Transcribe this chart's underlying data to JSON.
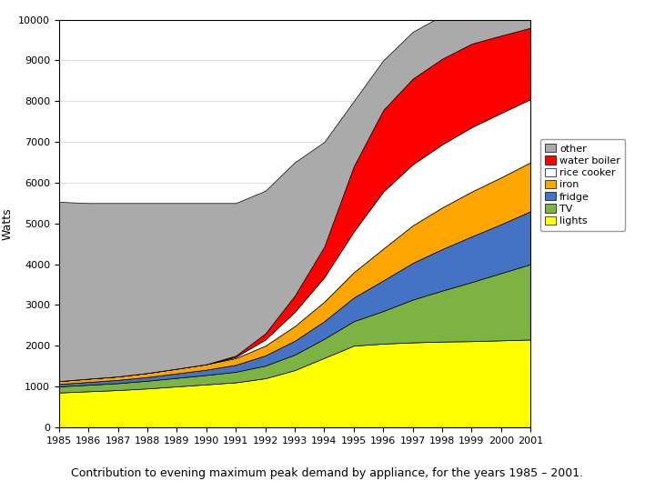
{
  "years": [
    1985,
    1986,
    1987,
    1988,
    1989,
    1990,
    1991,
    1992,
    1993,
    1994,
    1995,
    1996,
    1997,
    1998,
    1999,
    2000,
    2001
  ],
  "series": {
    "lights": [
      850,
      880,
      910,
      950,
      1000,
      1050,
      1100,
      1200,
      1400,
      1700,
      2000,
      2050,
      2080,
      2100,
      2110,
      2130,
      2150
    ],
    "TV": [
      150,
      160,
      170,
      190,
      210,
      230,
      260,
      310,
      380,
      470,
      600,
      800,
      1050,
      1250,
      1450,
      1650,
      1850
    ],
    "fridge": [
      60,
      70,
      80,
      90,
      110,
      130,
      170,
      250,
      340,
      430,
      580,
      750,
      900,
      1020,
      1120,
      1200,
      1300
    ],
    "iron": [
      70,
      80,
      85,
      100,
      115,
      135,
      165,
      240,
      360,
      480,
      620,
      780,
      920,
      1020,
      1100,
      1150,
      1200
    ],
    "rice_cooker": [
      0,
      0,
      0,
      0,
      0,
      0,
      30,
      150,
      350,
      600,
      1000,
      1400,
      1500,
      1550,
      1580,
      1580,
      1550
    ],
    "water_boiler": [
      0,
      0,
      0,
      0,
      0,
      0,
      30,
      150,
      400,
      750,
      1600,
      2000,
      2100,
      2100,
      2050,
      1900,
      1750
    ],
    "other": [
      4400,
      4310,
      4255,
      4170,
      4065,
      3955,
      3745,
      3500,
      3270,
      2570,
      1600,
      1220,
      1150,
      1060,
      990,
      1090,
      1200
    ]
  },
  "colors": {
    "lights": "#ffff00",
    "TV": "#7cb342",
    "fridge": "#4472c4",
    "iron": "#ffa500",
    "rice_cooker": "#ffffff",
    "water_boiler": "#ff0000",
    "other": "#aaaaaa"
  },
  "labels": {
    "lights": "lights",
    "TV": "TV",
    "fridge": "fridge",
    "iron": "iron",
    "rice_cooker": "rice cooker",
    "water_boiler": "water boiler",
    "other": "other"
  },
  "legend_order": [
    "other",
    "water_boiler",
    "rice_cooker",
    "iron",
    "fridge",
    "TV",
    "lights"
  ],
  "ylabel": "Watts",
  "ylim": [
    0,
    10000
  ],
  "yticks": [
    0,
    1000,
    2000,
    3000,
    4000,
    5000,
    6000,
    7000,
    8000,
    9000,
    10000
  ],
  "caption": "Contribution to evening maximum peak demand by appliance, for the years 1985 – 2001.",
  "background_color": "#ffffff"
}
